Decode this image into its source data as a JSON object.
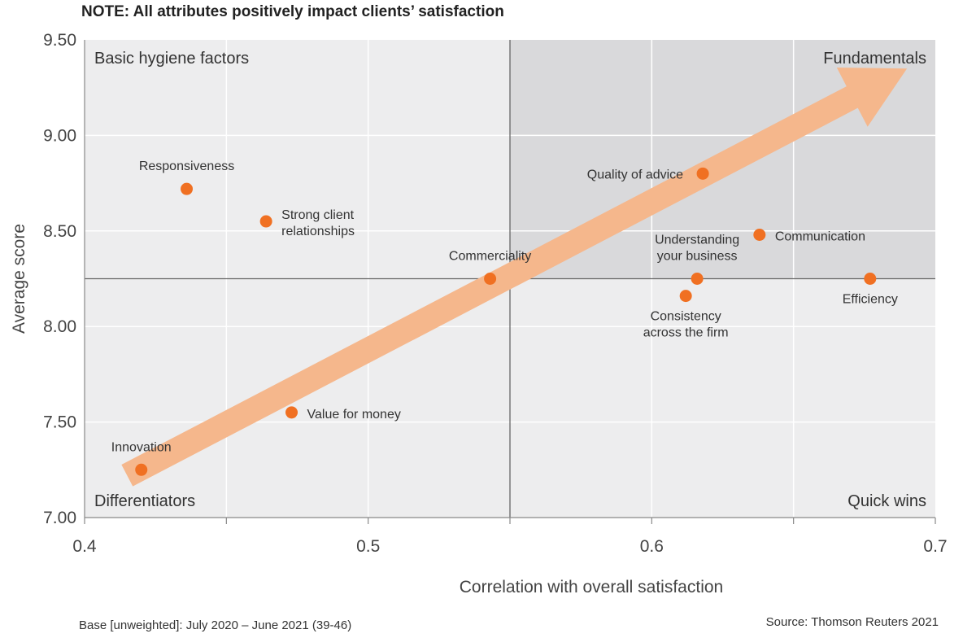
{
  "note": "NOTE: All attributes positively impact clients’ satisfaction",
  "footer": {
    "base": "Base [unweighted]: July 2020 – June 2021 (39-46)",
    "source": "Source: Thomson Reuters 2021"
  },
  "colors": {
    "point": "#f07022",
    "arrow": "#f5b78c",
    "shaded_quadrant": "#d9d9db",
    "unshaded": "#ededee",
    "divider": "#666666"
  },
  "chart_data": {
    "type": "scatter",
    "title": "",
    "xlabel": "Correlation with overall satisfaction",
    "ylabel": "Average score",
    "xlim": [
      0.4,
      0.7
    ],
    "ylim": [
      7.0,
      9.5
    ],
    "x_ticks": [
      {
        "value": 0.4,
        "label": "0.4"
      },
      {
        "value": 0.5,
        "label": "0.5"
      },
      {
        "value": 0.6,
        "label": "0.6"
      },
      {
        "value": 0.7,
        "label": "0.7"
      }
    ],
    "y_ticks": [
      {
        "value": 7.0,
        "label": "7.00"
      },
      {
        "value": 7.5,
        "label": "7.50"
      },
      {
        "value": 8.0,
        "label": "8.00"
      },
      {
        "value": 8.5,
        "label": "8.50"
      },
      {
        "value": 9.0,
        "label": "9.00"
      },
      {
        "value": 9.5,
        "label": "9.50"
      }
    ],
    "grid": true,
    "dividers": {
      "x": 0.55,
      "y": 8.25
    },
    "quadrants": {
      "top_left": "Basic hygiene factors",
      "top_right": "Fundamentals",
      "bottom_left": "Differentiators",
      "bottom_right": "Quick wins"
    },
    "points": [
      {
        "lines": [
          "Responsiveness"
        ],
        "x": 0.436,
        "y": 8.72,
        "label_pos": "above"
      },
      {
        "lines": [
          "Strong client",
          "relationships"
        ],
        "x": 0.464,
        "y": 8.55,
        "label_pos": "right"
      },
      {
        "lines": [
          "Commerciality"
        ],
        "x": 0.543,
        "y": 8.25,
        "label_pos": "above"
      },
      {
        "lines": [
          "Value for money"
        ],
        "x": 0.473,
        "y": 7.55,
        "label_pos": "right"
      },
      {
        "lines": [
          "Innovation"
        ],
        "x": 0.42,
        "y": 7.25,
        "label_pos": "above"
      },
      {
        "lines": [
          "Quality of advice"
        ],
        "x": 0.618,
        "y": 8.8,
        "label_pos": "left"
      },
      {
        "lines": [
          "Communication"
        ],
        "x": 0.638,
        "y": 8.48,
        "label_pos": "right"
      },
      {
        "lines": [
          "Understanding",
          "your business"
        ],
        "x": 0.616,
        "y": 8.25,
        "label_pos": "above"
      },
      {
        "lines": [
          "Consistency",
          "across the firm"
        ],
        "x": 0.612,
        "y": 8.16,
        "label_pos": "below"
      },
      {
        "lines": [
          "Efficiency"
        ],
        "x": 0.677,
        "y": 8.25,
        "label_pos": "below"
      }
    ],
    "trend_arrow": {
      "from": [
        0.415,
        7.22
      ],
      "to": [
        0.69,
        9.35
      ]
    }
  }
}
